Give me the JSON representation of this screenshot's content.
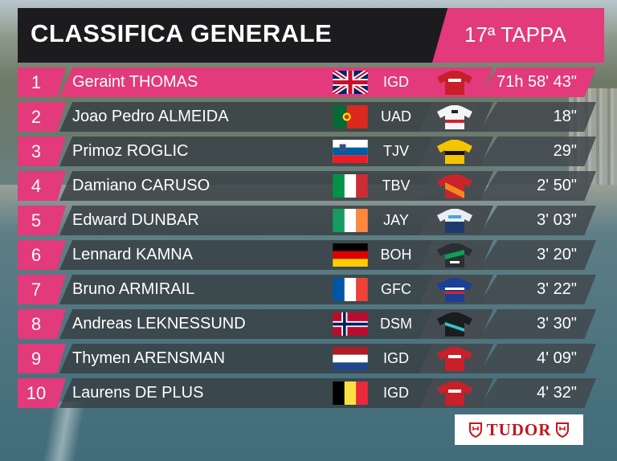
{
  "header": {
    "title": "CLASSIFICA GENERALE",
    "stage": "17ª TAPPA"
  },
  "colors": {
    "accent": "#e23a7a",
    "row_bg": "#373e42",
    "title_bg": "#1c1c1f"
  },
  "standings": [
    {
      "pos": "1",
      "name": "Geraint THOMAS",
      "flag": "gb-flag-icon",
      "team": "IGD",
      "jersey": "ineos-jersey-icon",
      "time": "71h 58' 43\""
    },
    {
      "pos": "2",
      "name": "Joao Pedro ALMEIDA",
      "flag": "pt-flag-icon",
      "team": "UAD",
      "jersey": "uae-jersey-icon",
      "time": "18\""
    },
    {
      "pos": "3",
      "name": "Primoz ROGLIC",
      "flag": "si-flag-icon",
      "team": "TJV",
      "jersey": "jumbo-jersey-icon",
      "time": "29\""
    },
    {
      "pos": "4",
      "name": "Damiano CARUSO",
      "flag": "it-flag-icon",
      "team": "TBV",
      "jersey": "bahrain-jersey-icon",
      "time": "2' 50\""
    },
    {
      "pos": "5",
      "name": "Edward DUNBAR",
      "flag": "ie-flag-icon",
      "team": "JAY",
      "jersey": "jayco-jersey-icon",
      "time": "3' 03\""
    },
    {
      "pos": "6",
      "name": "Lennard KAMNA",
      "flag": "de-flag-icon",
      "team": "BOH",
      "jersey": "bora-jersey-icon",
      "time": "3' 20\""
    },
    {
      "pos": "7",
      "name": "Bruno ARMIRAIL",
      "flag": "fr-flag-icon",
      "team": "GFC",
      "jersey": "groupama-jersey-icon",
      "time": "3' 22\""
    },
    {
      "pos": "8",
      "name": "Andreas LEKNESSUND",
      "flag": "no-flag-icon",
      "team": "DSM",
      "jersey": "dsm-jersey-icon",
      "time": "3' 30\""
    },
    {
      "pos": "9",
      "name": "Thymen ARENSMAN",
      "flag": "nl-flag-icon",
      "team": "IGD",
      "jersey": "ineos-jersey-icon",
      "time": "4' 09\""
    },
    {
      "pos": "10",
      "name": "Laurens DE PLUS",
      "flag": "be-flag-icon",
      "team": "IGD",
      "jersey": "ineos-jersey-icon",
      "time": "4' 32\""
    }
  ],
  "sponsor": {
    "name": "TUDOR"
  }
}
